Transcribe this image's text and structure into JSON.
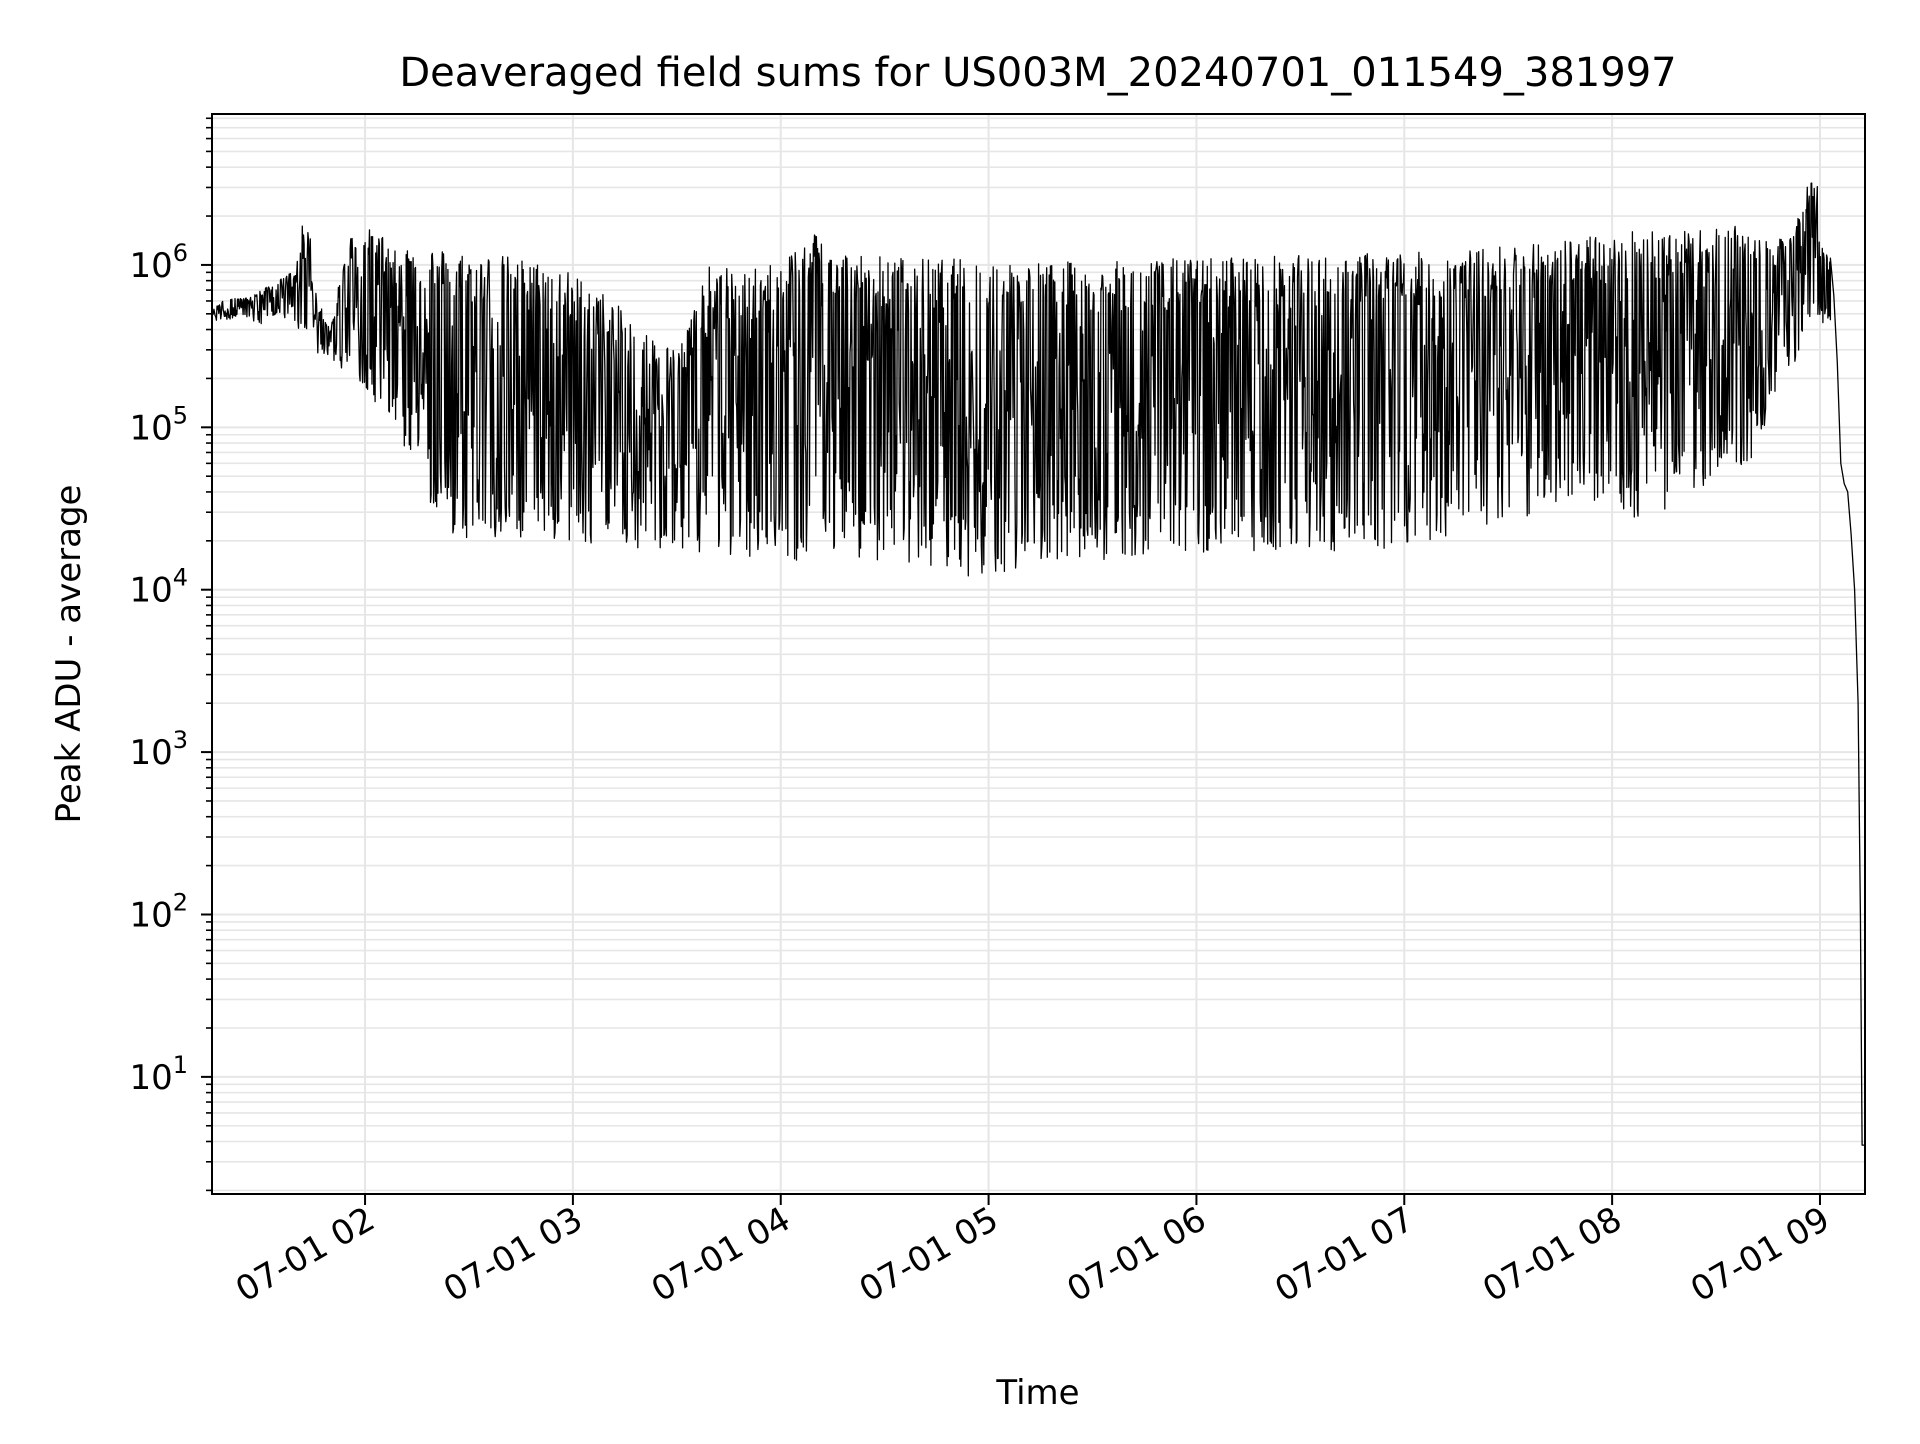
{
  "chart_data": {
    "type": "line",
    "title": "Deaveraged field sums for US003M_20240701_011549_381997",
    "xlabel": "Time",
    "ylabel": "Peak ADU - average",
    "yscale": "log",
    "ylim": [
      1.9,
      8500000
    ],
    "xlim": [
      "2024-07-01T01:15:49",
      "2024-07-01T09:13:00"
    ],
    "grid": {
      "major": true,
      "minor": true,
      "color": "#e6e6e6"
    },
    "line_color": "#000000",
    "x_ticks": [
      {
        "t": "2024-07-01T02:00:00",
        "label": "07-01 02"
      },
      {
        "t": "2024-07-01T03:00:00",
        "label": "07-01 03"
      },
      {
        "t": "2024-07-01T04:00:00",
        "label": "07-01 04"
      },
      {
        "t": "2024-07-01T05:00:00",
        "label": "07-01 05"
      },
      {
        "t": "2024-07-01T06:00:00",
        "label": "07-01 06"
      },
      {
        "t": "2024-07-01T07:00:00",
        "label": "07-01 07"
      },
      {
        "t": "2024-07-01T08:00:00",
        "label": "07-01 08"
      },
      {
        "t": "2024-07-01T09:00:00",
        "label": "07-01 09"
      }
    ],
    "y_ticks": [
      {
        "v": 10,
        "base": "10",
        "exp": "1"
      },
      {
        "v": 100,
        "base": "10",
        "exp": "2"
      },
      {
        "v": 1000,
        "base": "10",
        "exp": "3"
      },
      {
        "v": 10000,
        "base": "10",
        "exp": "4"
      },
      {
        "v": 100000,
        "base": "10",
        "exp": "5"
      },
      {
        "v": 1000000,
        "base": "10",
        "exp": "6"
      }
    ],
    "series": [
      {
        "upper_envelope": [
          [
            "2024-07-01T01:15:49",
            520000
          ],
          [
            "2024-07-01T01:20:00",
            650000
          ],
          [
            "2024-07-01T01:25:00",
            620000
          ],
          [
            "2024-07-01T01:30:00",
            700000
          ],
          [
            "2024-07-01T01:35:00",
            800000
          ],
          [
            "2024-07-01T01:40:00",
            950000
          ],
          [
            "2024-07-01T01:43:00",
            2500000
          ],
          [
            "2024-07-01T01:46:00",
            650000
          ],
          [
            "2024-07-01T01:50:00",
            400000
          ],
          [
            "2024-07-01T01:55:00",
            1500000
          ],
          [
            "2024-07-01T02:00:00",
            1700000
          ],
          [
            "2024-07-01T02:10:00",
            1400000
          ],
          [
            "2024-07-01T02:20:00",
            1300000
          ],
          [
            "2024-07-01T02:30:00",
            1200000
          ],
          [
            "2024-07-01T02:40:00",
            1150000
          ],
          [
            "2024-07-01T02:50:00",
            1050000
          ],
          [
            "2024-07-01T03:00:00",
            900000
          ],
          [
            "2024-07-01T03:10:00",
            650000
          ],
          [
            "2024-07-01T03:20:00",
            400000
          ],
          [
            "2024-07-01T03:30:00",
            300000
          ],
          [
            "2024-07-01T03:40:00",
            1050000
          ],
          [
            "2024-07-01T03:50:00",
            900000
          ],
          [
            "2024-07-01T04:00:00",
            1100000
          ],
          [
            "2024-07-01T04:10:00",
            1700000
          ],
          [
            "2024-07-01T04:20:00",
            1200000
          ],
          [
            "2024-07-01T04:30:00",
            1150000
          ],
          [
            "2024-07-01T04:40:00",
            1100000
          ],
          [
            "2024-07-01T04:50:00",
            1100000
          ],
          [
            "2024-07-01T05:00:00",
            1100000
          ],
          [
            "2024-07-01T05:10:00",
            1050000
          ],
          [
            "2024-07-01T05:20:00",
            1050000
          ],
          [
            "2024-07-01T05:30:00",
            1050000
          ],
          [
            "2024-07-01T05:40:00",
            1050000
          ],
          [
            "2024-07-01T05:50:00",
            1100000
          ],
          [
            "2024-07-01T06:00:00",
            1100000
          ],
          [
            "2024-07-01T06:10:00",
            1150000
          ],
          [
            "2024-07-01T06:20:00",
            1150000
          ],
          [
            "2024-07-01T06:30:00",
            1150000
          ],
          [
            "2024-07-01T06:40:00",
            1150000
          ],
          [
            "2024-07-01T06:50:00",
            1200000
          ],
          [
            "2024-07-01T07:00:00",
            1200000
          ],
          [
            "2024-07-01T07:10:00",
            1200000
          ],
          [
            "2024-07-01T07:20:00",
            1250000
          ],
          [
            "2024-07-01T07:30:00",
            1350000
          ],
          [
            "2024-07-01T07:40:00",
            1450000
          ],
          [
            "2024-07-01T07:50:00",
            1500000
          ],
          [
            "2024-07-01T08:00:00",
            1500000
          ],
          [
            "2024-07-01T08:10:00",
            1800000
          ],
          [
            "2024-07-01T08:20:00",
            1600000
          ],
          [
            "2024-07-01T08:30:00",
            1700000
          ],
          [
            "2024-07-01T08:40:00",
            1750000
          ],
          [
            "2024-07-01T08:50:00",
            1400000
          ],
          [
            "2024-07-01T08:59:00",
            4200000
          ],
          [
            "2024-07-01T09:00:00",
            1300000
          ],
          [
            "2024-07-01T09:03:00",
            1200000
          ]
        ],
        "lower_envelope": [
          [
            "2024-07-01T01:15:49",
            450000
          ],
          [
            "2024-07-01T01:20:00",
            460000
          ],
          [
            "2024-07-01T01:25:00",
            480000
          ],
          [
            "2024-07-01T01:30:00",
            420000
          ],
          [
            "2024-07-01T01:35:00",
            500000
          ],
          [
            "2024-07-01T01:40:00",
            420000
          ],
          [
            "2024-07-01T01:45:00",
            300000
          ],
          [
            "2024-07-01T01:50:00",
            250000
          ],
          [
            "2024-07-01T01:55:00",
            220000
          ],
          [
            "2024-07-01T02:00:00",
            180000
          ],
          [
            "2024-07-01T02:05:00",
            120000
          ],
          [
            "2024-07-01T02:10:00",
            80000
          ],
          [
            "2024-07-01T02:15:00",
            50000
          ],
          [
            "2024-07-01T02:20:00",
            30000
          ],
          [
            "2024-07-01T02:25:00",
            22000
          ],
          [
            "2024-07-01T02:30:00",
            20000
          ],
          [
            "2024-07-01T02:40:00",
            20000
          ],
          [
            "2024-07-01T02:50:00",
            20000
          ],
          [
            "2024-07-01T03:00:00",
            19000
          ],
          [
            "2024-07-01T03:10:00",
            19000
          ],
          [
            "2024-07-01T03:20:00",
            18000
          ],
          [
            "2024-07-01T03:30:00",
            17000
          ],
          [
            "2024-07-01T03:40:00",
            17000
          ],
          [
            "2024-07-01T03:50:00",
            16000
          ],
          [
            "2024-07-01T04:00:00",
            15000
          ],
          [
            "2024-07-01T04:10:00",
            15000
          ],
          [
            "2024-07-01T04:20:00",
            16000
          ],
          [
            "2024-07-01T04:30:00",
            15000
          ],
          [
            "2024-07-01T04:40:00",
            14000
          ],
          [
            "2024-07-01T04:50:00",
            13000
          ],
          [
            "2024-07-01T05:00:00",
            11000
          ],
          [
            "2024-07-01T05:10:00",
            13000
          ],
          [
            "2024-07-01T05:20:00",
            14000
          ],
          [
            "2024-07-01T05:30:00",
            15000
          ],
          [
            "2024-07-01T05:40:00",
            16000
          ],
          [
            "2024-07-01T05:50:00",
            17000
          ],
          [
            "2024-07-01T06:00:00",
            17000
          ],
          [
            "2024-07-01T06:10:00",
            17000
          ],
          [
            "2024-07-01T06:20:00",
            17000
          ],
          [
            "2024-07-01T06:30:00",
            17000
          ],
          [
            "2024-07-01T06:40:00",
            17000
          ],
          [
            "2024-07-01T06:50:00",
            18000
          ],
          [
            "2024-07-01T07:00:00",
            18000
          ],
          [
            "2024-07-01T07:10:00",
            20000
          ],
          [
            "2024-07-01T07:20:00",
            22000
          ],
          [
            "2024-07-01T07:30:00",
            25000
          ],
          [
            "2024-07-01T07:40:00",
            30000
          ],
          [
            "2024-07-01T07:50:00",
            40000
          ],
          [
            "2024-07-01T08:00:00",
            30000
          ],
          [
            "2024-07-01T08:10:00",
            25000
          ],
          [
            "2024-07-01T08:20:00",
            35000
          ],
          [
            "2024-07-01T08:30:00",
            50000
          ],
          [
            "2024-07-01T08:40:00",
            60000
          ],
          [
            "2024-07-01T08:50:00",
            200000
          ],
          [
            "2024-07-01T09:00:00",
            450000
          ],
          [
            "2024-07-01T09:03:00",
            400000
          ]
        ],
        "tail": [
          [
            "2024-07-01T09:03:00",
            1100000
          ],
          [
            "2024-07-01T09:04:00",
            650000
          ],
          [
            "2024-07-01T09:05:00",
            250000
          ],
          [
            "2024-07-01T09:06:00",
            60000
          ],
          [
            "2024-07-01T09:07:00",
            45000
          ],
          [
            "2024-07-01T09:08:00",
            40000
          ],
          [
            "2024-07-01T09:09:00",
            22000
          ],
          [
            "2024-07-01T09:10:00",
            10000
          ],
          [
            "2024-07-01T09:11:00",
            2000
          ],
          [
            "2024-07-01T09:11:40",
            100
          ],
          [
            "2024-07-01T09:12:10",
            3.8
          ],
          [
            "2024-07-01T09:13:00",
            3.8
          ]
        ]
      }
    ]
  }
}
